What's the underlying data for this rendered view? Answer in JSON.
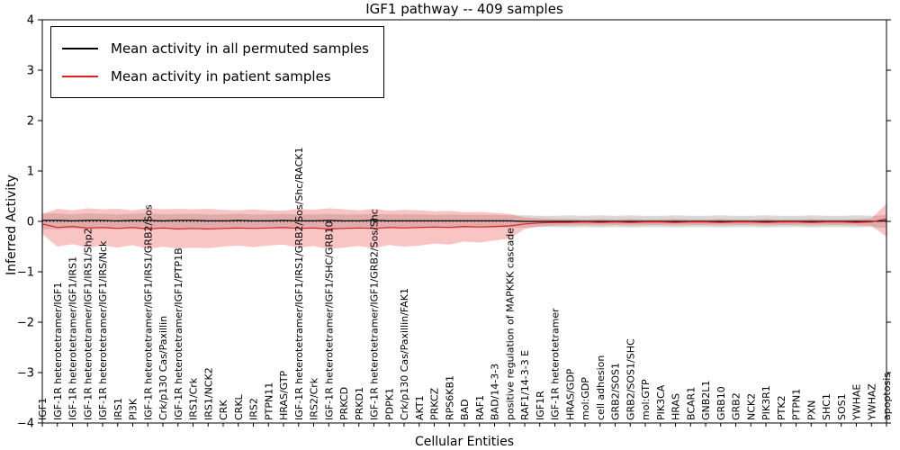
{
  "figure": {
    "title": "IGF1 pathway -- 409 samples",
    "xlabel": "Cellular Entities",
    "ylabel": "Inferred Activity"
  },
  "legend": {
    "entries": [
      {
        "label": "Mean activity in all permuted samples",
        "color": "#000000"
      },
      {
        "label": "Mean activity in patient samples",
        "color": "#dd2222"
      }
    ]
  },
  "chart_data": {
    "type": "line",
    "title": "IGF1 pathway -- 409 samples",
    "xlabel": "Cellular Entities",
    "ylabel": "Inferred Activity",
    "ylim": [
      -4,
      4
    ],
    "yticks": [
      -4,
      -3,
      -2,
      -1,
      0,
      1,
      2,
      3,
      4
    ],
    "ytick_labels": [
      "−4",
      "−3",
      "−2",
      "−1",
      "0",
      "1",
      "2",
      "3",
      "4"
    ],
    "grid": false,
    "legend_position": "upper-left",
    "zero_line": {
      "y": 0,
      "style": "dotted"
    },
    "categories": [
      "IGF1",
      "IGF-1R heterotetramer/IGF1",
      "IGF-1R heterotetramer/IGF1/IRS1",
      "IGF-1R heterotetramer/IGF1/IRS1/Shp2",
      "IGF-1R heterotetramer/IGF1/IRS/Nck",
      "IRS1",
      "PI3K",
      "IGF-1R heterotetramer/IGF1/IRS1/GRB2/Sos",
      "Crk/p130 Cas/Paxillin",
      "IGF-1R heterotetramer/IGF1/PTP1B",
      "IRS1/Crk",
      "IRS1/NCK2",
      "CRK",
      "CRKL",
      "IRS2",
      "PTPN11",
      "HRAS/GTP",
      "IGF-1R heterotetramer/IGF1/IRS1/GRB2/Sos/Shc/RACK1",
      "IRS2/Crk",
      "IGF-1R heterotetramer/IGF1/SHC/GRB10",
      "PRKCD",
      "PRKD1",
      "IGF-1R heterotetramer/IGF1/GRB2/Sos/Shc",
      "PDPK1",
      "Crk/p130 Cas/Paxillin/FAK1",
      "AKT1",
      "PRKCZ",
      "RPS6KB1",
      "BAD",
      "RAF1",
      "BAD/14-3-3",
      "positive regulation of MAPKKK cascade",
      "RAF1/14-3-3 E",
      "IGF1R",
      "IGF-1R heterotetramer",
      "HRAS/GDP",
      "mol:GDP",
      "cell adhesion",
      "GRB2/SOS1",
      "GRB2/SOS1/SHC",
      "mol:GTP",
      "PIK3CA",
      "HRAS",
      "BCAR1",
      "GNB2L1",
      "GRB10",
      "GRB2",
      "NCK2",
      "PIK3R1",
      "PTK2",
      "PTPN1",
      "PXN",
      "SHC1",
      "SOS1",
      "YWHAE",
      "YWHAZ",
      "apoptosis"
    ],
    "series": [
      {
        "name": "Mean activity in all permuted samples",
        "color": "#000000",
        "band_color": "#aaaaaa",
        "band_opacity": 0.45,
        "values": [
          0.02,
          0.02,
          0.01,
          0.02,
          0.02,
          0.01,
          0.02,
          0.02,
          0.01,
          0.02,
          0.02,
          0.01,
          0.01,
          0.02,
          0.01,
          0.01,
          0.02,
          0.01,
          0.01,
          0.02,
          0.01,
          0.01,
          0.02,
          0.01,
          0.01,
          0.01,
          0.01,
          0.01,
          0.01,
          0.01,
          0.01,
          0.01,
          0.0,
          0.0,
          0.0,
          0.0,
          0.0,
          0.0,
          0.0,
          0.0,
          0.0,
          0.0,
          0.0,
          0.0,
          0.0,
          0.0,
          0.0,
          0.0,
          0.0,
          0.0,
          0.0,
          0.0,
          0.0,
          0.0,
          0.0,
          0.0,
          0.01
        ],
        "upper": [
          0.15,
          0.16,
          0.14,
          0.16,
          0.15,
          0.14,
          0.15,
          0.16,
          0.14,
          0.15,
          0.15,
          0.14,
          0.14,
          0.15,
          0.14,
          0.14,
          0.15,
          0.14,
          0.14,
          0.15,
          0.14,
          0.14,
          0.15,
          0.14,
          0.14,
          0.14,
          0.13,
          0.14,
          0.13,
          0.13,
          0.13,
          0.12,
          0.12,
          0.11,
          0.11,
          0.12,
          0.11,
          0.12,
          0.11,
          0.12,
          0.11,
          0.11,
          0.12,
          0.11,
          0.11,
          0.12,
          0.11,
          0.11,
          0.12,
          0.11,
          0.11,
          0.12,
          0.11,
          0.11,
          0.12,
          0.11,
          0.13
        ],
        "lower": [
          -0.15,
          -0.16,
          -0.14,
          -0.16,
          -0.15,
          -0.14,
          -0.15,
          -0.16,
          -0.14,
          -0.15,
          -0.15,
          -0.14,
          -0.14,
          -0.15,
          -0.14,
          -0.14,
          -0.15,
          -0.14,
          -0.14,
          -0.15,
          -0.14,
          -0.14,
          -0.15,
          -0.14,
          -0.14,
          -0.14,
          -0.13,
          -0.14,
          -0.13,
          -0.13,
          -0.13,
          -0.12,
          -0.12,
          -0.11,
          -0.11,
          -0.12,
          -0.11,
          -0.12,
          -0.11,
          -0.12,
          -0.11,
          -0.11,
          -0.12,
          -0.11,
          -0.11,
          -0.12,
          -0.11,
          -0.11,
          -0.12,
          -0.11,
          -0.11,
          -0.12,
          -0.11,
          -0.11,
          -0.12,
          -0.11,
          -0.13
        ]
      },
      {
        "name": "Mean activity in patient samples",
        "color": "#dd2222",
        "band_color": "#ee5555",
        "band_opacity": 0.35,
        "values": [
          -0.05,
          -0.12,
          -0.1,
          -0.13,
          -0.12,
          -0.14,
          -0.12,
          -0.15,
          -0.13,
          -0.15,
          -0.14,
          -0.15,
          -0.14,
          -0.13,
          -0.14,
          -0.13,
          -0.12,
          -0.14,
          -0.13,
          -0.15,
          -0.14,
          -0.13,
          -0.14,
          -0.12,
          -0.13,
          -0.12,
          -0.11,
          -0.12,
          -0.1,
          -0.11,
          -0.1,
          -0.09,
          -0.05,
          -0.03,
          -0.02,
          -0.02,
          -0.01,
          -0.02,
          -0.01,
          -0.02,
          -0.01,
          -0.01,
          -0.02,
          -0.01,
          -0.01,
          -0.02,
          -0.01,
          -0.01,
          -0.02,
          -0.01,
          -0.01,
          -0.02,
          -0.01,
          -0.01,
          -0.02,
          -0.01,
          0.05
        ],
        "upper": [
          0.15,
          0.25,
          0.22,
          0.26,
          0.24,
          0.25,
          0.22,
          0.26,
          0.24,
          0.25,
          0.24,
          0.25,
          0.23,
          0.22,
          0.24,
          0.22,
          0.21,
          0.25,
          0.23,
          0.26,
          0.24,
          0.22,
          0.25,
          0.21,
          0.23,
          0.22,
          0.2,
          0.21,
          0.18,
          0.19,
          0.17,
          0.15,
          0.08,
          0.06,
          0.05,
          0.05,
          0.04,
          0.05,
          0.04,
          0.05,
          0.04,
          0.04,
          0.05,
          0.04,
          0.04,
          0.05,
          0.04,
          0.04,
          0.05,
          0.04,
          0.04,
          0.05,
          0.04,
          0.04,
          0.05,
          0.06,
          0.35
        ],
        "lower": [
          -0.25,
          -0.5,
          -0.45,
          -0.52,
          -0.48,
          -0.52,
          -0.47,
          -0.55,
          -0.5,
          -0.54,
          -0.52,
          -0.53,
          -0.5,
          -0.48,
          -0.51,
          -0.48,
          -0.46,
          -0.52,
          -0.49,
          -0.55,
          -0.52,
          -0.49,
          -0.53,
          -0.47,
          -0.5,
          -0.48,
          -0.44,
          -0.46,
          -0.4,
          -0.42,
          -0.38,
          -0.34,
          -0.15,
          -0.1,
          -0.08,
          -0.08,
          -0.07,
          -0.08,
          -0.07,
          -0.08,
          -0.07,
          -0.07,
          -0.08,
          -0.07,
          -0.07,
          -0.08,
          -0.07,
          -0.07,
          -0.08,
          -0.07,
          -0.07,
          -0.08,
          -0.07,
          -0.07,
          -0.08,
          -0.09,
          -0.3
        ]
      }
    ]
  }
}
